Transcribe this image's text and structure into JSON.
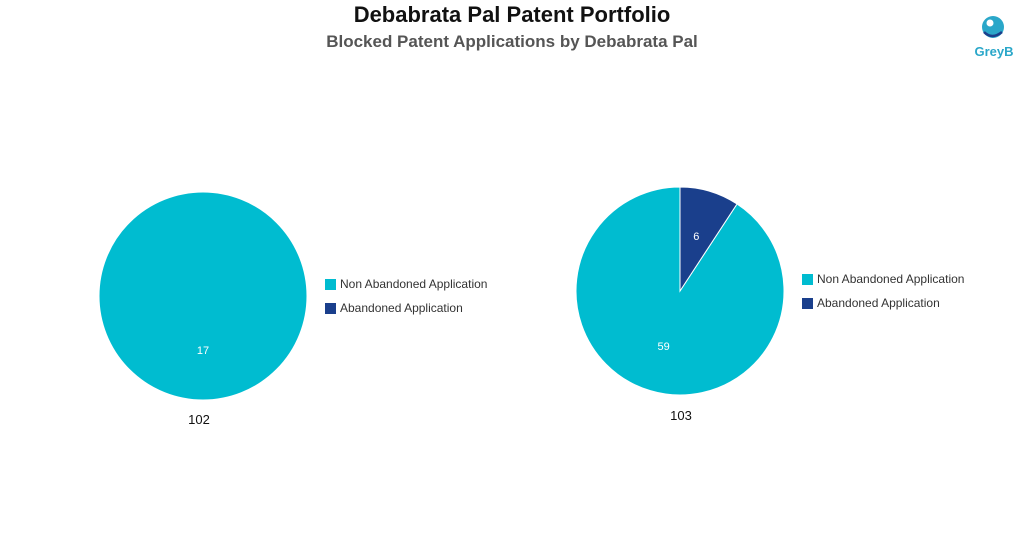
{
  "title": "Debabrata Pal Patent Portfolio",
  "subtitle": "Blocked Patent Applications by Debabrata Pal",
  "logo": {
    "text": "GreyB",
    "icon": "greyb-logo-icon"
  },
  "colors": {
    "non_abandoned": "#00BCD0",
    "abandoned": "#1A3F8C"
  },
  "chart_data": [
    {
      "type": "pie",
      "label": "102",
      "categories": [
        "Non Abandoned Application",
        "Abandoned Application"
      ],
      "values": [
        17,
        0
      ],
      "legend": [
        "Non Abandoned Application",
        "Abandoned Application"
      ],
      "legend_position": "right"
    },
    {
      "type": "pie",
      "label": "103",
      "categories": [
        "Non Abandoned Application",
        "Abandoned Application"
      ],
      "values": [
        59,
        6
      ],
      "legend": [
        "Non Abandoned Application",
        "Abandoned Application"
      ],
      "legend_position": "right"
    }
  ]
}
